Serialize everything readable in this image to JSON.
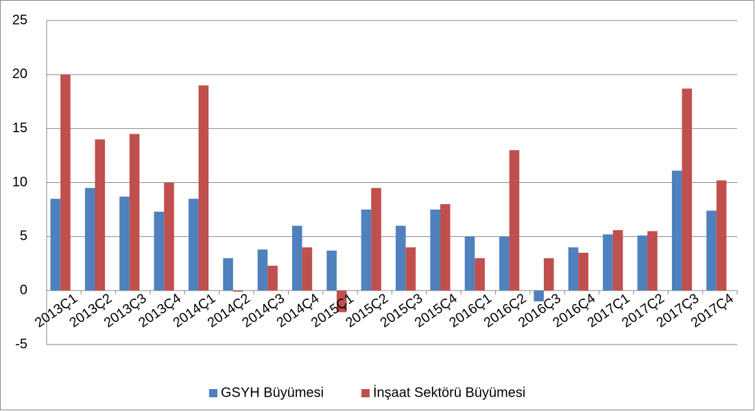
{
  "chart_data": {
    "type": "bar",
    "categories": [
      "2013Ç1",
      "2013Ç2",
      "2013Ç3",
      "2013Ç4",
      "2014Ç1",
      "2014Ç2",
      "2014Ç3",
      "2014Ç4",
      "2015Ç1",
      "2015Ç2",
      "2015Ç3",
      "2015Ç4",
      "2016Ç1",
      "2016Ç2",
      "2016Ç3",
      "2016Ç4",
      "2017Ç1",
      "2017Ç2",
      "2017Ç3",
      "2017Ç4"
    ],
    "series": [
      {
        "name": "GSYH Büyümesi",
        "color": "#4f81bd",
        "values": [
          8.5,
          9.5,
          8.7,
          7.3,
          8.5,
          3.0,
          3.8,
          6.0,
          3.7,
          7.5,
          6.0,
          7.5,
          5.0,
          5.0,
          -1.0,
          4.0,
          5.2,
          5.1,
          11.1,
          7.4
        ]
      },
      {
        "name": "İnşaat Sektörü Büyümesi",
        "color": "#c0504d",
        "values": [
          20.0,
          14.0,
          14.5,
          10.0,
          19.0,
          -0.1,
          2.3,
          4.0,
          -2.0,
          9.5,
          4.0,
          8.0,
          3.0,
          13.0,
          3.0,
          3.5,
          5.6,
          5.5,
          18.7,
          10.2
        ]
      }
    ],
    "ylim": [
      -5,
      25
    ],
    "yticks": [
      -5,
      0,
      5,
      10,
      15,
      20,
      25
    ],
    "grid": true,
    "legend": "bottom"
  }
}
